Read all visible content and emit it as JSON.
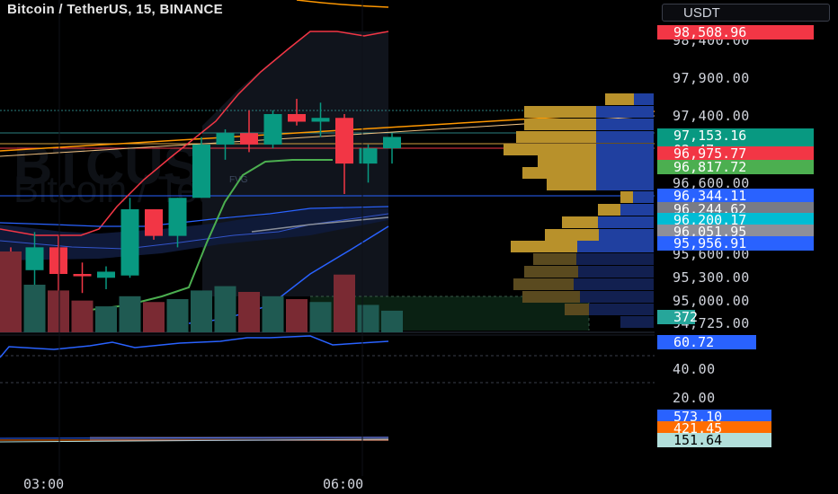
{
  "header": {
    "title": "Bitcoin / TetherUS, 15, BINANCE",
    "currency": "USDT"
  },
  "watermark": {
    "main": "BTCUSDT, 15",
    "sub": "Bitcoin / TetherUS"
  },
  "fvg_label": "FVG",
  "price_axis": {
    "labels": [
      "98,400.00",
      "97,900.00",
      "97,400.00",
      "96,600.00",
      "95,600.00",
      "95,300.00",
      "95,000.00",
      "94,725.00"
    ]
  },
  "price_tags": [
    {
      "text": "98,508.96",
      "color": "#f23645"
    },
    {
      "text": "97,153.16",
      "color": "#089981"
    },
    {
      "text": "02:47",
      "color": "#089981"
    },
    {
      "text": "96,975.77",
      "color": "#f23645"
    },
    {
      "text": "96,817.72",
      "color": "#4caf50"
    },
    {
      "text": "96,344.11",
      "color": "#2962ff"
    },
    {
      "text": "96,244.62",
      "color": "#787b86"
    },
    {
      "text": "96,200.17",
      "color": "#00bcd4"
    },
    {
      "text": "96,051.95",
      "color": "#8d8f99"
    },
    {
      "text": "95,956.91",
      "color": "#2962ff"
    },
    {
      "text": "372",
      "color": "#26a69a"
    }
  ],
  "rsi_panel": {
    "value_tag": {
      "text": "60.72",
      "color": "#2962ff"
    },
    "labels": [
      "40.00",
      "20.00"
    ]
  },
  "lower_panel": {
    "tags": [
      {
        "text": "573.10",
        "color": "#2962ff"
      },
      {
        "text": "421.45",
        "color": "#ff6d00"
      },
      {
        "text": "151.64",
        "color": "#b2dfdb"
      }
    ]
  },
  "time_axis": {
    "labels": [
      "03:00",
      "06:00"
    ]
  },
  "colors": {
    "up": "#089981",
    "down": "#f23645",
    "volume_profile_gold": "#b8912b",
    "volume_profile_blue": "#2040a0",
    "background": "#000000"
  },
  "chart_data": {
    "type": "candlestick",
    "interval": "15",
    "symbol": "BTCUSDT",
    "exchange": "BINANCE",
    "ylim": [
      94725,
      98500
    ],
    "candles": [
      {
        "o": 95600,
        "h": 95700,
        "l": 95000,
        "c": 95100
      },
      {
        "o": 95400,
        "h": 95900,
        "l": 95050,
        "c": 95700
      },
      {
        "o": 95700,
        "h": 95850,
        "l": 95100,
        "c": 95350
      },
      {
        "o": 95350,
        "h": 95500,
        "l": 95100,
        "c": 95320
      },
      {
        "o": 95300,
        "h": 95450,
        "l": 95150,
        "c": 95380
      },
      {
        "o": 95330,
        "h": 96350,
        "l": 95300,
        "c": 96200
      },
      {
        "o": 96200,
        "h": 96200,
        "l": 95800,
        "c": 95850
      },
      {
        "o": 95850,
        "h": 96350,
        "l": 95700,
        "c": 96350
      },
      {
        "o": 96350,
        "h": 97150,
        "l": 96350,
        "c": 97050
      },
      {
        "o": 97050,
        "h": 97250,
        "l": 96850,
        "c": 97200
      },
      {
        "o": 97200,
        "h": 97500,
        "l": 96950,
        "c": 97050
      },
      {
        "o": 97050,
        "h": 97500,
        "l": 97000,
        "c": 97450
      },
      {
        "o": 97450,
        "h": 97650,
        "l": 97300,
        "c": 97350
      },
      {
        "o": 97350,
        "h": 97600,
        "l": 97150,
        "c": 97400
      },
      {
        "o": 97400,
        "h": 97450,
        "l": 96400,
        "c": 96800
      },
      {
        "o": 96800,
        "h": 97050,
        "l": 96550,
        "c": 97000
      },
      {
        "o": 97000,
        "h": 97200,
        "l": 96800,
        "c": 97150
      }
    ],
    "volumes": [
      560,
      330,
      290,
      220,
      180,
      250,
      210,
      230,
      290,
      320,
      280,
      250,
      230,
      210,
      400,
      190,
      150
    ]
  }
}
